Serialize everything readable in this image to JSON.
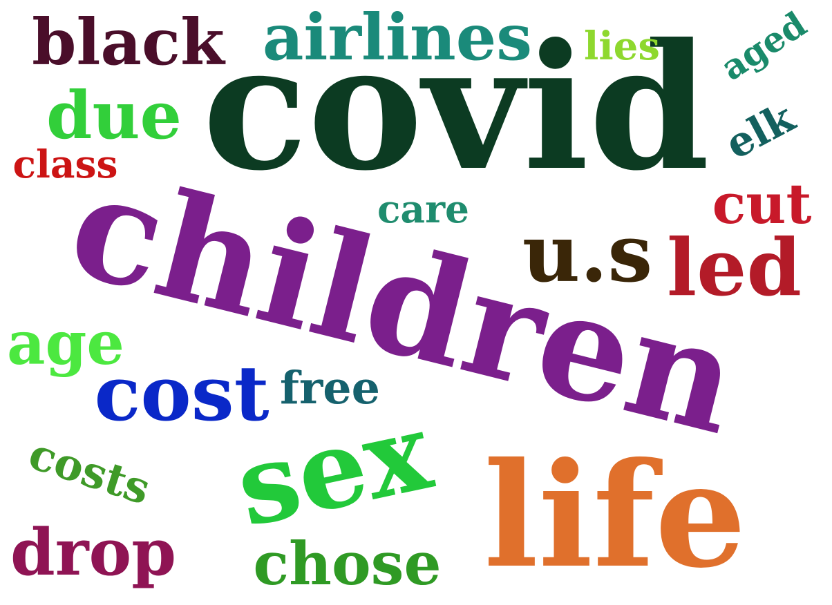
{
  "words": [
    {
      "text": "children",
      "color": "#7b1f8c"
    },
    {
      "text": "covid",
      "color": "#0c3b22"
    },
    {
      "text": "sex",
      "color": "#22c93a"
    },
    {
      "text": "life",
      "color": "#e0702c"
    },
    {
      "text": "u.s",
      "color": "#3a2608"
    },
    {
      "text": "airlines",
      "color": "#1a8a7a"
    },
    {
      "text": "black",
      "color": "#4a0e2a"
    },
    {
      "text": "cost",
      "color": "#0a28c8"
    },
    {
      "text": "led",
      "color": "#b31b28"
    },
    {
      "text": "costs",
      "color": "#3f9a28"
    },
    {
      "text": "drop",
      "color": "#8f1454"
    },
    {
      "text": "chose",
      "color": "#2f9a24"
    },
    {
      "text": "due",
      "color": "#32cf3a"
    },
    {
      "text": "age",
      "color": "#4ce840"
    },
    {
      "text": "cut",
      "color": "#c8192a"
    },
    {
      "text": "elk",
      "color": "#13605e"
    },
    {
      "text": "aged",
      "color": "#1a8a6a"
    },
    {
      "text": "care",
      "color": "#1f8c6e"
    },
    {
      "text": "free",
      "color": "#15616d"
    },
    {
      "text": "lies",
      "color": "#8ed82e"
    },
    {
      "text": "class",
      "color": "#cc1414"
    }
  ]
}
